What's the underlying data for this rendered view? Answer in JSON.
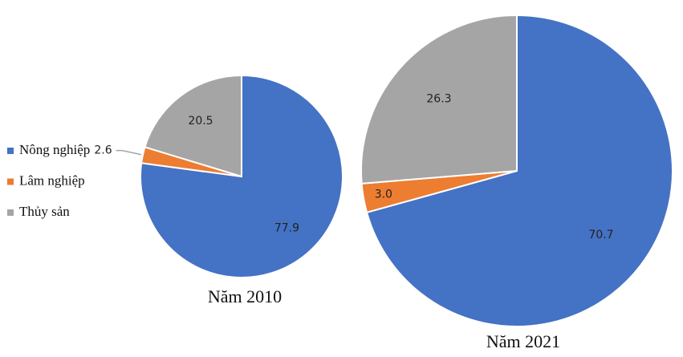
{
  "chart_data": [
    {
      "type": "pie",
      "title": "Năm 2010",
      "categories": [
        "Nông nghiệp",
        "Lâm nghiệp",
        "Thủy sản"
      ],
      "values": [
        77.9,
        2.6,
        20.5
      ],
      "colors": [
        "#4472c4",
        "#ed7d31",
        "#a5a5a5"
      ]
    },
    {
      "type": "pie",
      "title": "Năm 2021",
      "categories": [
        "Nông nghiệp",
        "Lâm nghiệp",
        "Thủy sản"
      ],
      "values": [
        70.7,
        3.0,
        26.3
      ],
      "value_labels": [
        "70.7",
        "3.0",
        "26.3"
      ],
      "colors": [
        "#4472c4",
        "#ed7d31",
        "#a5a5a5"
      ]
    }
  ]
}
